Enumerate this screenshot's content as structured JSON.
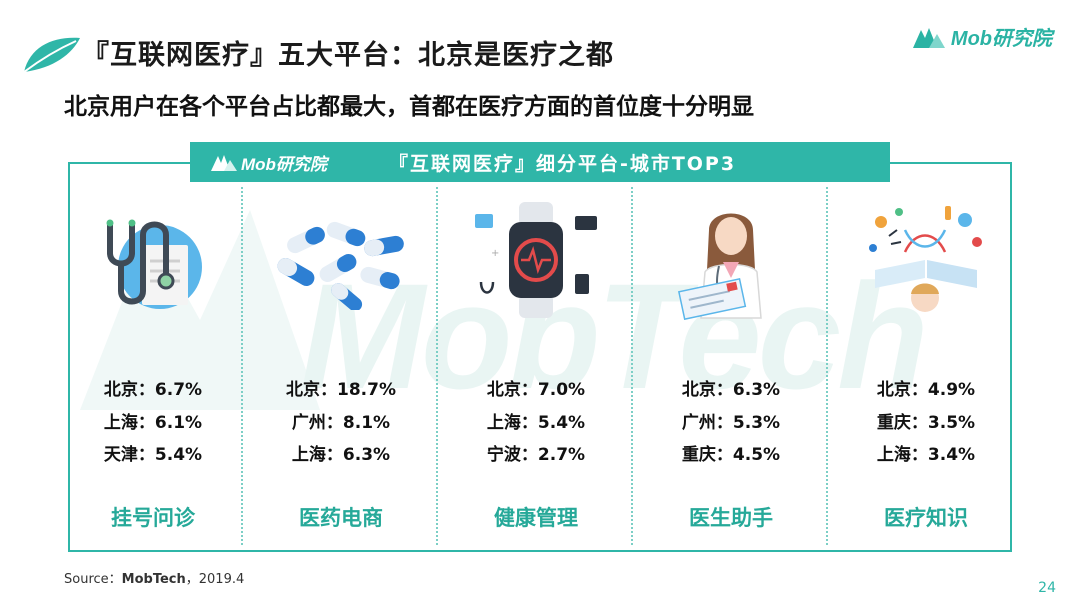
{
  "header": {
    "title": "『互联网医疗』五大平台：北京是医疗之都",
    "subtitle": "北京用户在各个平台占比都最大，首都在医疗方面的首位度十分明显",
    "logo_text": "Mob研究院"
  },
  "banner": {
    "logo_text": "Mob研究院",
    "title": "『互联网医疗』细分平台-城市TOP3"
  },
  "watermark": {
    "text": "MobTech"
  },
  "colors": {
    "accent": "#2fb6a8",
    "category": "#26a999",
    "watermark": "#e9f5f3"
  },
  "platforms": [
    {
      "icon": "stethoscope-icon",
      "category": "挂号问诊",
      "stats": [
        "北京：6.7%",
        "上海：6.1%",
        "天津：5.4%"
      ]
    },
    {
      "icon": "pills-icon",
      "category": "医药电商",
      "stats": [
        "北京：18.7%",
        "广州：8.1%",
        "上海：6.3%"
      ]
    },
    {
      "icon": "smartwatch-icon",
      "category": "健康管理",
      "stats": [
        "北京：7.0%",
        "上海：5.4%",
        "宁波：2.7%"
      ]
    },
    {
      "icon": "doctor-icon",
      "category": "医生助手",
      "stats": [
        "北京：6.3%",
        "广州：5.3%",
        "重庆：4.5%"
      ]
    },
    {
      "icon": "science-book-icon",
      "category": "医疗知识",
      "stats": [
        "北京：4.9%",
        "重庆：3.5%",
        "上海：3.4%"
      ]
    }
  ],
  "footer": {
    "source_label": "Source：",
    "source_name": "MobTech",
    "source_date": "，2019.4",
    "page": "24"
  }
}
